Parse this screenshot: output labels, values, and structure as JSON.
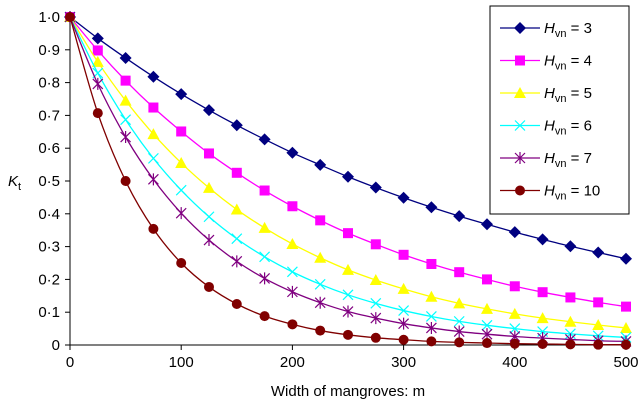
{
  "chart_data": {
    "type": "line",
    "title": "",
    "xlabel": "Width of mangroves: m",
    "ylabel": {
      "main": "K",
      "sub": "t"
    },
    "xlim": [
      0,
      500
    ],
    "ylim": [
      0,
      1.0
    ],
    "x_ticks": [
      0,
      100,
      200,
      300,
      400,
      500
    ],
    "x_tick_labels": [
      "0",
      "100",
      "200",
      "300",
      "400",
      "500"
    ],
    "y_ticks": [
      0,
      0.1,
      0.2,
      0.3,
      0.4,
      0.5,
      0.6,
      0.7,
      0.8,
      0.9,
      1.0
    ],
    "y_tick_labels": [
      "0",
      "0·1",
      "0·2",
      "0·3",
      "0·4",
      "0·5",
      "0·6",
      "0·7",
      "0·8",
      "0·9",
      "1·0"
    ],
    "grid": false,
    "legend_position": "top-right",
    "x": [
      0,
      25,
      50,
      75,
      100,
      125,
      150,
      175,
      200,
      225,
      250,
      275,
      300,
      325,
      350,
      375,
      400,
      425,
      450,
      475,
      500
    ],
    "series": [
      {
        "name": "H_vn = 3",
        "label_main": "H",
        "label_sub": "vn",
        "label_rest": " = 3",
        "color": "#000080",
        "marker": "diamond",
        "values": [
          1.0,
          0.935,
          0.875,
          0.818,
          0.765,
          0.716,
          0.67,
          0.627,
          0.586,
          0.549,
          0.513,
          0.48,
          0.449,
          0.42,
          0.393,
          0.368,
          0.344,
          0.322,
          0.301,
          0.282,
          0.263
        ]
      },
      {
        "name": "H_vn = 4",
        "label_main": "H",
        "label_sub": "vn",
        "label_rest": " = 4",
        "color": "#FF00FF",
        "marker": "square",
        "values": [
          1.0,
          0.898,
          0.806,
          0.724,
          0.651,
          0.584,
          0.525,
          0.471,
          0.423,
          0.38,
          0.341,
          0.307,
          0.275,
          0.247,
          0.222,
          0.2,
          0.179,
          0.161,
          0.145,
          0.13,
          0.117
        ]
      },
      {
        "name": "H_vn = 5",
        "label_main": "H",
        "label_sub": "vn",
        "label_rest": " = 5",
        "color": "#FFFF00",
        "marker": "triangle",
        "values": [
          1.0,
          0.863,
          0.745,
          0.643,
          0.555,
          0.479,
          0.413,
          0.357,
          0.308,
          0.266,
          0.229,
          0.198,
          0.171,
          0.147,
          0.127,
          0.11,
          0.095,
          0.082,
          0.071,
          0.061,
          0.052
        ]
      },
      {
        "name": "H_vn = 6",
        "label_main": "H",
        "label_sub": "vn",
        "label_rest": " = 6",
        "color": "#00FFFF",
        "marker": "x",
        "values": [
          1.0,
          0.829,
          0.687,
          0.569,
          0.472,
          0.391,
          0.324,
          0.269,
          0.223,
          0.185,
          0.153,
          0.127,
          0.105,
          0.087,
          0.072,
          0.06,
          0.05,
          0.041,
          0.034,
          0.028,
          0.023
        ]
      },
      {
        "name": "H_vn = 7",
        "label_main": "H",
        "label_sub": "vn",
        "label_rest": " = 7",
        "color": "#800080",
        "marker": "star",
        "values": [
          1.0,
          0.796,
          0.634,
          0.505,
          0.402,
          0.32,
          0.255,
          0.203,
          0.162,
          0.129,
          0.102,
          0.082,
          0.065,
          0.052,
          0.041,
          0.033,
          0.026,
          0.021,
          0.017,
          0.013,
          0.011
        ]
      },
      {
        "name": "H_vn = 10",
        "label_main": "H",
        "label_sub": "vn",
        "label_rest": " = 10",
        "color": "#800000",
        "marker": "circle",
        "values": [
          1.0,
          0.707,
          0.5,
          0.354,
          0.25,
          0.177,
          0.125,
          0.088,
          0.063,
          0.044,
          0.031,
          0.022,
          0.016,
          0.011,
          0.008,
          0.006,
          0.004,
          0.003,
          0.002,
          0.001,
          0.001
        ]
      }
    ]
  }
}
